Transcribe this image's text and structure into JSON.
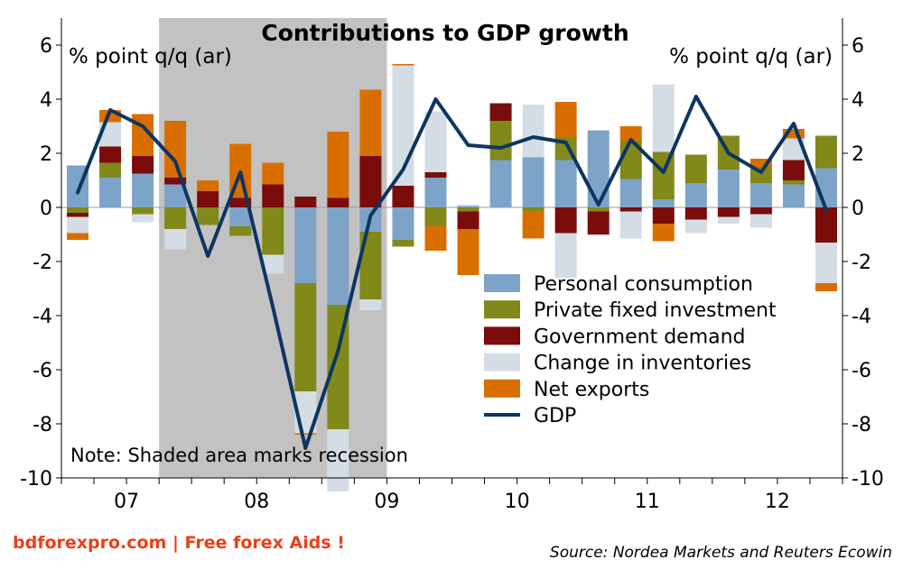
{
  "chart_data": {
    "type": "bar",
    "title": "Contributions to GDP growth",
    "ylabel_left": "% point q/q (ar)",
    "ylabel_right": "% point q/q (ar)",
    "ylim": [
      -10,
      7
    ],
    "yticks": [
      6,
      4,
      2,
      0,
      -2,
      -4,
      -6,
      -8,
      -10
    ],
    "x_tick_labels": [
      "07",
      "08",
      "09",
      "10",
      "11",
      "12"
    ],
    "quarters": [
      "07Q1",
      "07Q2",
      "07Q3",
      "07Q4",
      "08Q1",
      "08Q2",
      "08Q3",
      "08Q4",
      "09Q1",
      "09Q2",
      "09Q3",
      "09Q4",
      "10Q1",
      "10Q2",
      "10Q3",
      "10Q4",
      "11Q1",
      "11Q2",
      "11Q3",
      "11Q4",
      "12Q1",
      "12Q2",
      "12Q3",
      "12Q4"
    ],
    "recession": {
      "from": "07Q4",
      "to": "09Q2"
    },
    "series": [
      {
        "name": "Personal consumption",
        "color": "#7ea3c8",
        "values": [
          1.55,
          1.1,
          1.25,
          0.85,
          0.0,
          -0.7,
          0.0,
          -2.8,
          -3.6,
          -0.9,
          -1.2,
          1.1,
          0.05,
          1.75,
          1.85,
          1.75,
          2.85,
          1.05,
          0.3,
          0.9,
          1.4,
          0.9,
          0.85,
          1.45
        ]
      },
      {
        "name": "Private fixed investment",
        "color": "#80891a",
        "values": [
          -0.2,
          0.55,
          -0.25,
          -0.8,
          -0.65,
          -0.35,
          -1.75,
          -4.0,
          -4.6,
          -2.5,
          -0.25,
          -0.7,
          -0.15,
          1.45,
          -0.15,
          0.85,
          -0.15,
          1.4,
          1.75,
          1.05,
          1.25,
          0.6,
          0.15,
          1.2
        ]
      },
      {
        "name": "Government demand",
        "color": "#7a0c0c",
        "values": [
          -0.15,
          0.6,
          0.65,
          0.25,
          0.6,
          0.35,
          0.85,
          0.4,
          0.35,
          1.9,
          0.8,
          0.2,
          -0.65,
          0.65,
          0.0,
          -0.95,
          -0.85,
          -0.15,
          -0.6,
          -0.45,
          -0.35,
          -0.25,
          0.75,
          -1.3
        ]
      },
      {
        "name": "Change in inventories",
        "color": "#d4dde6",
        "values": [
          -0.6,
          0.9,
          -0.3,
          -0.75,
          0.0,
          0.0,
          -0.7,
          -1.55,
          -2.3,
          -0.4,
          4.45,
          2.25,
          0.05,
          0.0,
          1.95,
          -1.65,
          -0.05,
          -1.0,
          2.5,
          -0.5,
          -0.25,
          -0.5,
          0.8,
          -1.5
        ]
      },
      {
        "name": "Net exports",
        "color": "#d96e00",
        "values": [
          -0.25,
          0.45,
          1.55,
          2.1,
          0.4,
          2.0,
          0.8,
          -0.05,
          2.45,
          2.45,
          0.05,
          -0.9,
          -1.7,
          0.0,
          -1.0,
          1.3,
          0.0,
          0.55,
          -0.65,
          0.0,
          0.0,
          0.3,
          0.35,
          -0.3
        ]
      }
    ],
    "line": {
      "name": "GDP",
      "color": "#0d3560",
      "values": [
        0.55,
        3.6,
        3.0,
        1.7,
        -1.8,
        1.3,
        -3.7,
        -8.9,
        -5.3,
        -0.3,
        1.4,
        4.0,
        2.3,
        2.2,
        2.6,
        2.4,
        0.1,
        2.5,
        1.3,
        4.1,
        2.0,
        1.3,
        3.1,
        -0.1
      ]
    },
    "legend": "bottom-right",
    "annotation": "Note: Shaded area marks recession"
  },
  "footer": {
    "watermark": "bdforexpro.com | Free forex Aids !",
    "source": "Source: Nordea Markets and Reuters Ecowin"
  }
}
